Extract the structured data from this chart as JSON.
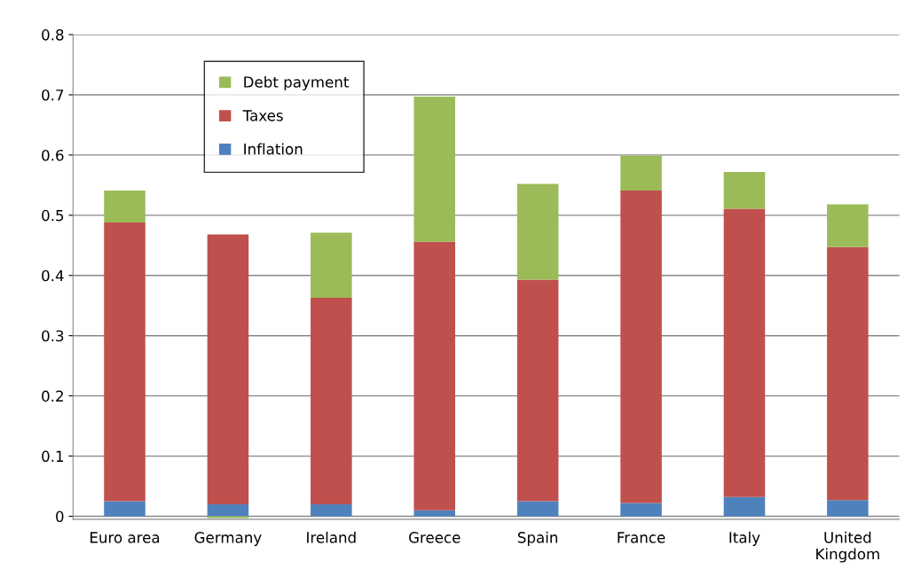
{
  "chart_data": {
    "type": "bar",
    "stacked": true,
    "categories": [
      "Euro area",
      "Germany",
      "Ireland",
      "Greece",
      "Spain",
      "France",
      "Italy",
      "United Kingdom"
    ],
    "series": [
      {
        "name": "Inflation",
        "color": "#4f81bd",
        "values": [
          0.025,
          0.02,
          0.02,
          0.01,
          0.025,
          0.022,
          0.032,
          0.027
        ]
      },
      {
        "name": "Taxes",
        "color": "#c0504d",
        "values": [
          0.463,
          0.448,
          0.343,
          0.446,
          0.368,
          0.519,
          0.479,
          0.42
        ]
      },
      {
        "name": "Debt payment",
        "color": "#9bbb59",
        "values": [
          0.053,
          -0.003,
          0.108,
          0.241,
          0.159,
          0.058,
          0.061,
          0.071
        ]
      }
    ],
    "ylim": [
      -0.005,
      0.8
    ],
    "yticks": [
      0,
      0.1,
      0.2,
      0.3,
      0.4,
      0.5,
      0.6,
      0.7,
      0.8
    ],
    "grid": "y",
    "legend": "top left"
  }
}
